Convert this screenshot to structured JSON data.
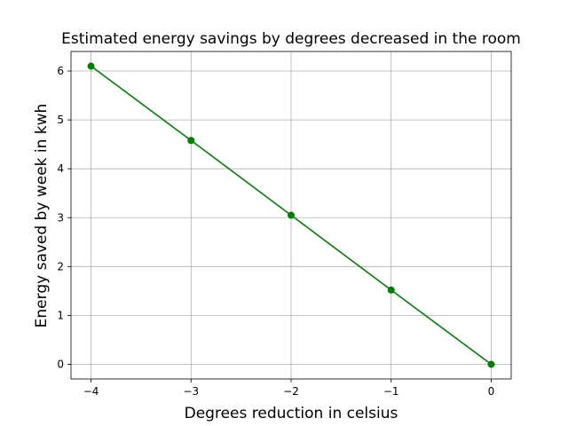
{
  "chart_data": {
    "type": "line",
    "title": "Estimated energy savings by degrees decreased in the room",
    "xlabel": "Degrees reduction in celsius",
    "ylabel": "Energy saved by week in kwh",
    "x": [
      -4,
      -3,
      -2,
      -1,
      0
    ],
    "series": [
      {
        "values": [
          6.1,
          4.58,
          3.05,
          1.52,
          0
        ],
        "color": "#008000",
        "marker": "circle"
      }
    ],
    "xlim": [
      -4.2,
      0.2
    ],
    "ylim": [
      -0.3,
      6.4
    ],
    "xticks": [
      -4,
      -3,
      -2,
      -1,
      0
    ],
    "yticks": [
      0,
      1,
      2,
      3,
      4,
      5,
      6
    ],
    "xtick_labels": [
      "−4",
      "−3",
      "−2",
      "−1",
      "0"
    ],
    "ytick_labels": [
      "0",
      "1",
      "2",
      "3",
      "4",
      "5",
      "6"
    ],
    "grid": true,
    "grid_color": "#b0b0b0"
  }
}
